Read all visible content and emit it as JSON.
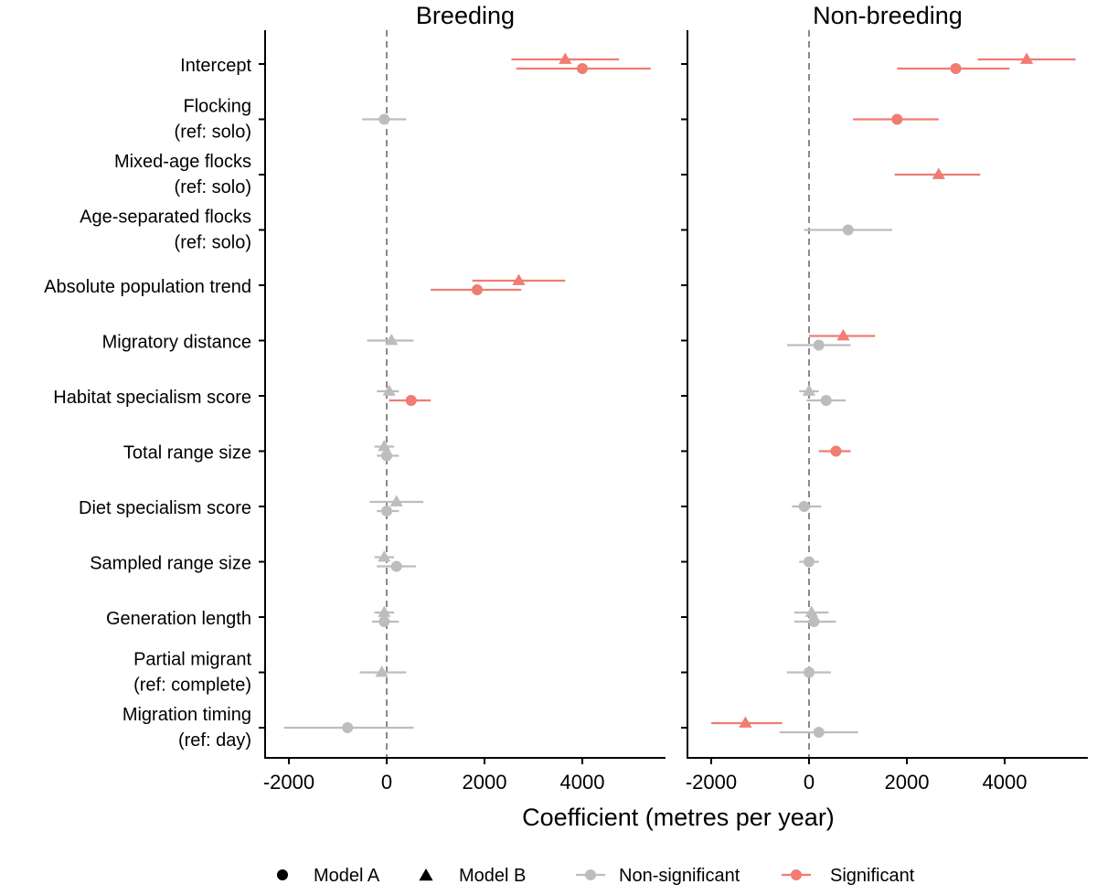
{
  "chart_data": {
    "type": "forest-plot",
    "xlabel": "Coefficient (metres per year)",
    "xlim": [
      -2500,
      5700
    ],
    "xticks": [
      -2000,
      0,
      2000,
      4000
    ],
    "xtick_labels": [
      "-2000",
      "0",
      "2000",
      "4000"
    ],
    "reference_line": 0,
    "categories": [
      [
        "Intercept"
      ],
      [
        "Flocking",
        "(ref: solo)"
      ],
      [
        "Mixed-age flocks",
        "(ref: solo)"
      ],
      [
        "Age-separated flocks",
        "(ref: solo)"
      ],
      [
        "Absolute population trend"
      ],
      [
        "Migratory distance"
      ],
      [
        "Habitat specialism score"
      ],
      [
        "Total range size"
      ],
      [
        "Diet specialism score"
      ],
      [
        "Sampled range size"
      ],
      [
        "Generation length"
      ],
      [
        "Partial migrant",
        "(ref: complete)"
      ],
      [
        "Migration timing",
        "(ref: day)"
      ]
    ],
    "colors": {
      "significant": "#f07c72",
      "non_significant": "#bdbdbd"
    },
    "legend": {
      "position": "bottom",
      "items": [
        {
          "label": "Model A",
          "shape": "circle",
          "color": "#000000"
        },
        {
          "label": "Model B",
          "shape": "triangle",
          "color": "#000000"
        },
        {
          "label": "Non-significant",
          "shape": "circle-line",
          "color": "#bdbdbd"
        },
        {
          "label": "Significant",
          "shape": "circle-line",
          "color": "#f07c72"
        }
      ]
    },
    "panels": [
      {
        "title": "Breeding",
        "estimates": [
          {
            "row": 0,
            "model": "B",
            "est": 3650,
            "lo": 2550,
            "hi": 4750,
            "sig": true
          },
          {
            "row": 0,
            "model": "A",
            "est": 4000,
            "lo": 2650,
            "hi": 5400,
            "sig": true
          },
          {
            "row": 1,
            "model": "A",
            "est": -50,
            "lo": -500,
            "hi": 400,
            "sig": false
          },
          {
            "row": 4,
            "model": "B",
            "est": 2700,
            "lo": 1750,
            "hi": 3650,
            "sig": true
          },
          {
            "row": 4,
            "model": "A",
            "est": 1850,
            "lo": 900,
            "hi": 2750,
            "sig": true
          },
          {
            "row": 5,
            "model": "B",
            "est": 100,
            "lo": -400,
            "hi": 550,
            "sig": false
          },
          {
            "row": 6,
            "model": "A",
            "est": 500,
            "lo": 50,
            "hi": 900,
            "sig": true
          },
          {
            "row": 6,
            "model": "B",
            "est": 50,
            "lo": -200,
            "hi": 250,
            "sig": false
          },
          {
            "row": 7,
            "model": "B",
            "est": -50,
            "lo": -250,
            "hi": 150,
            "sig": false
          },
          {
            "row": 7,
            "model": "A",
            "est": 0,
            "lo": -200,
            "hi": 250,
            "sig": false
          },
          {
            "row": 8,
            "model": "B",
            "est": 200,
            "lo": -350,
            "hi": 750,
            "sig": false
          },
          {
            "row": 8,
            "model": "A",
            "est": 0,
            "lo": -200,
            "hi": 250,
            "sig": false
          },
          {
            "row": 9,
            "model": "B",
            "est": -50,
            "lo": -250,
            "hi": 150,
            "sig": false
          },
          {
            "row": 9,
            "model": "A",
            "est": 200,
            "lo": -200,
            "hi": 600,
            "sig": false
          },
          {
            "row": 10,
            "model": "B",
            "est": -50,
            "lo": -250,
            "hi": 150,
            "sig": false
          },
          {
            "row": 10,
            "model": "A",
            "est": -50,
            "lo": -300,
            "hi": 250,
            "sig": false
          },
          {
            "row": 11,
            "model": "B",
            "est": -100,
            "lo": -550,
            "hi": 400,
            "sig": false
          },
          {
            "row": 12,
            "model": "A",
            "est": -800,
            "lo": -2100,
            "hi": 550,
            "sig": false
          }
        ]
      },
      {
        "title": "Non-breeding",
        "estimates": [
          {
            "row": 0,
            "model": "B",
            "est": 4450,
            "lo": 3450,
            "hi": 5450,
            "sig": true
          },
          {
            "row": 0,
            "model": "A",
            "est": 3000,
            "lo": 1800,
            "hi": 4100,
            "sig": true
          },
          {
            "row": 1,
            "model": "A",
            "est": 1800,
            "lo": 900,
            "hi": 2650,
            "sig": true
          },
          {
            "row": 2,
            "model": "B",
            "est": 2650,
            "lo": 1750,
            "hi": 3500,
            "sig": true
          },
          {
            "row": 3,
            "model": "A",
            "est": 800,
            "lo": -100,
            "hi": 1700,
            "sig": false
          },
          {
            "row": 5,
            "model": "B",
            "est": 700,
            "lo": 0,
            "hi": 1350,
            "sig": true
          },
          {
            "row": 5,
            "model": "A",
            "est": 200,
            "lo": -450,
            "hi": 850,
            "sig": false
          },
          {
            "row": 6,
            "model": "B",
            "est": 0,
            "lo": -200,
            "hi": 200,
            "sig": false
          },
          {
            "row": 6,
            "model": "A",
            "est": 350,
            "lo": -50,
            "hi": 750,
            "sig": false
          },
          {
            "row": 7,
            "model": "A",
            "est": 550,
            "lo": 200,
            "hi": 850,
            "sig": true
          },
          {
            "row": 8,
            "model": "A",
            "est": -100,
            "lo": -350,
            "hi": 250,
            "sig": false
          },
          {
            "row": 9,
            "model": "A",
            "est": 0,
            "lo": -200,
            "hi": 200,
            "sig": false
          },
          {
            "row": 10,
            "model": "B",
            "est": 50,
            "lo": -300,
            "hi": 400,
            "sig": false
          },
          {
            "row": 10,
            "model": "A",
            "est": 100,
            "lo": -300,
            "hi": 550,
            "sig": false
          },
          {
            "row": 11,
            "model": "A",
            "est": 0,
            "lo": -450,
            "hi": 450,
            "sig": false
          },
          {
            "row": 12,
            "model": "B",
            "est": -1300,
            "lo": -2000,
            "hi": -550,
            "sig": true
          },
          {
            "row": 12,
            "model": "A",
            "est": 200,
            "lo": -600,
            "hi": 1000,
            "sig": false
          }
        ]
      }
    ]
  }
}
